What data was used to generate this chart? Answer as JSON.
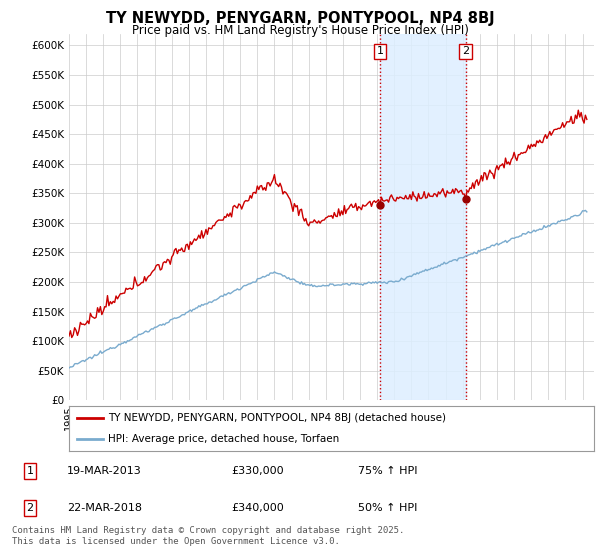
{
  "title": "TY NEWYDD, PENYGARN, PONTYPOOL, NP4 8BJ",
  "subtitle": "Price paid vs. HM Land Registry's House Price Index (HPI)",
  "ylim": [
    0,
    620000
  ],
  "yticks": [
    0,
    50000,
    100000,
    150000,
    200000,
    250000,
    300000,
    350000,
    400000,
    450000,
    500000,
    550000,
    600000
  ],
  "ytick_labels": [
    "£0",
    "£50K",
    "£100K",
    "£150K",
    "£200K",
    "£250K",
    "£300K",
    "£350K",
    "£400K",
    "£450K",
    "£500K",
    "£550K",
    "£600K"
  ],
  "sale1_text": "19-MAR-2013",
  "sale1_price_str": "£330,000",
  "sale1_pct": "75% ↑ HPI",
  "sale2_text": "22-MAR-2018",
  "sale2_price_str": "£340,000",
  "sale2_pct": "50% ↑ HPI",
  "highlight_color": "#ddeeff",
  "vline_color": "#cc0000",
  "red_line_color": "#cc0000",
  "blue_line_color": "#7aabce",
  "legend1_label": "TY NEWYDD, PENYGARN, PONTYPOOL, NP4 8BJ (detached house)",
  "legend2_label": "HPI: Average price, detached house, Torfaen",
  "footer": "Contains HM Land Registry data © Crown copyright and database right 2025.\nThis data is licensed under the Open Government Licence v3.0.",
  "background_color": "#ffffff",
  "grid_color": "#cccccc"
}
